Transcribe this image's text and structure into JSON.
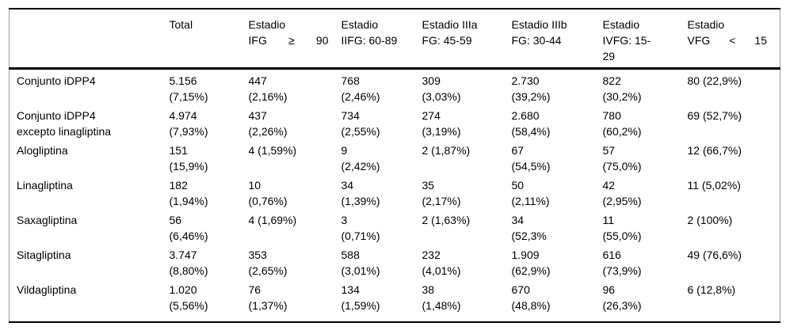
{
  "colors": {
    "background": "#ffffff",
    "text": "#000000",
    "horizontal_rule": "#000000",
    "side_border": "#9b9b9b"
  },
  "table": {
    "columns": [
      {
        "name": "row-label",
        "header_lines": [],
        "spread_last_line": false
      },
      {
        "name": "total",
        "header_lines": [
          "Total"
        ],
        "spread_last_line": false
      },
      {
        "name": "estadio-i",
        "header_lines": [
          "Estadio",
          "IFG ≥ 90"
        ],
        "spread_last_line": true
      },
      {
        "name": "estadio-ii",
        "header_lines": [
          "Estadio",
          "IIFG: 60-89"
        ],
        "spread_last_line": false
      },
      {
        "name": "estadio-iiia",
        "header_lines": [
          "Estadio IIIa",
          "FG: 45-59"
        ],
        "spread_last_line": false
      },
      {
        "name": "estadio-iiib",
        "header_lines": [
          "Estadio IIIb",
          "FG: 30-44"
        ],
        "spread_last_line": false
      },
      {
        "name": "estadio-iv",
        "header_lines": [
          "Estadio",
          "IVFG: 15-",
          "29"
        ],
        "spread_last_line": false
      },
      {
        "name": "estadio-v",
        "header_lines": [
          "Estadio",
          "VFG < 15"
        ],
        "spread_last_line": true
      }
    ],
    "rows": [
      {
        "label_lines": [
          "Conjunto iDPP4"
        ],
        "cells": [
          [
            "5.156",
            "(7,15%)"
          ],
          [
            "447",
            "(2,16%)"
          ],
          [
            "768",
            "(2,46%)"
          ],
          [
            "309",
            "(3,03%)"
          ],
          [
            "2.730",
            "(39,2%)"
          ],
          [
            "822",
            "(30,2%)"
          ],
          [
            "80 (22,9%)"
          ]
        ]
      },
      {
        "label_lines": [
          "Conjunto iDPP4",
          "excepto linagliptina"
        ],
        "cells": [
          [
            "4.974",
            "(7,93%)"
          ],
          [
            "437",
            "(2,26%)"
          ],
          [
            "734",
            "(2,55%)"
          ],
          [
            "274",
            "(3,19%)"
          ],
          [
            "2.680",
            "(58,4%)"
          ],
          [
            "780",
            "(60,2%)"
          ],
          [
            "69 (52,7%)"
          ]
        ]
      },
      {
        "label_lines": [
          "Alogliptina"
        ],
        "cells": [
          [
            "151",
            "(15,9%)"
          ],
          [
            "4 (1,59%)"
          ],
          [
            "9",
            "(2,42%)"
          ],
          [
            "2 (1,87%)"
          ],
          [
            "67",
            "(54,5%)"
          ],
          [
            "57",
            "(75,0%)"
          ],
          [
            "12 (66,7%)"
          ]
        ]
      },
      {
        "label_lines": [
          "Linagliptina"
        ],
        "cells": [
          [
            "182",
            "(1,94%)"
          ],
          [
            "10",
            "(0,76%)"
          ],
          [
            "34",
            "(1,39%)"
          ],
          [
            "35",
            "(2,17%)"
          ],
          [
            "50",
            "(2,11%)"
          ],
          [
            "42",
            "(2,95%)"
          ],
          [
            "11 (5,02%)"
          ]
        ]
      },
      {
        "label_lines": [
          "Saxagliptina"
        ],
        "cells": [
          [
            "56",
            "(6,46%)"
          ],
          [
            "4 (1,69%)"
          ],
          [
            "3",
            "(0,71%)"
          ],
          [
            "2 (1,63%)"
          ],
          [
            "34",
            "(52,3%"
          ],
          [
            "11",
            "(55,0%)"
          ],
          [
            "2 (100%)"
          ]
        ]
      },
      {
        "label_lines": [
          "Sitagliptina"
        ],
        "cells": [
          [
            "3.747",
            "(8,80%)"
          ],
          [
            "353",
            "(2,65%)"
          ],
          [
            "588",
            "(3,01%)"
          ],
          [
            "232",
            "(4,01%)"
          ],
          [
            "1.909",
            "(62,9%)"
          ],
          [
            "616",
            "(73,9%)"
          ],
          [
            "49 (76,6%)"
          ]
        ]
      },
      {
        "label_lines": [
          "Vildagliptina"
        ],
        "cells": [
          [
            "1.020",
            "(5,56%)"
          ],
          [
            "76",
            "(1,37%)"
          ],
          [
            "134",
            "(1,59%)"
          ],
          [
            "38",
            "(1,48%)"
          ],
          [
            "670",
            "(48,8%)"
          ],
          [
            "96",
            "(26,3%)"
          ],
          [
            "6 (12,8%)"
          ]
        ]
      }
    ]
  }
}
